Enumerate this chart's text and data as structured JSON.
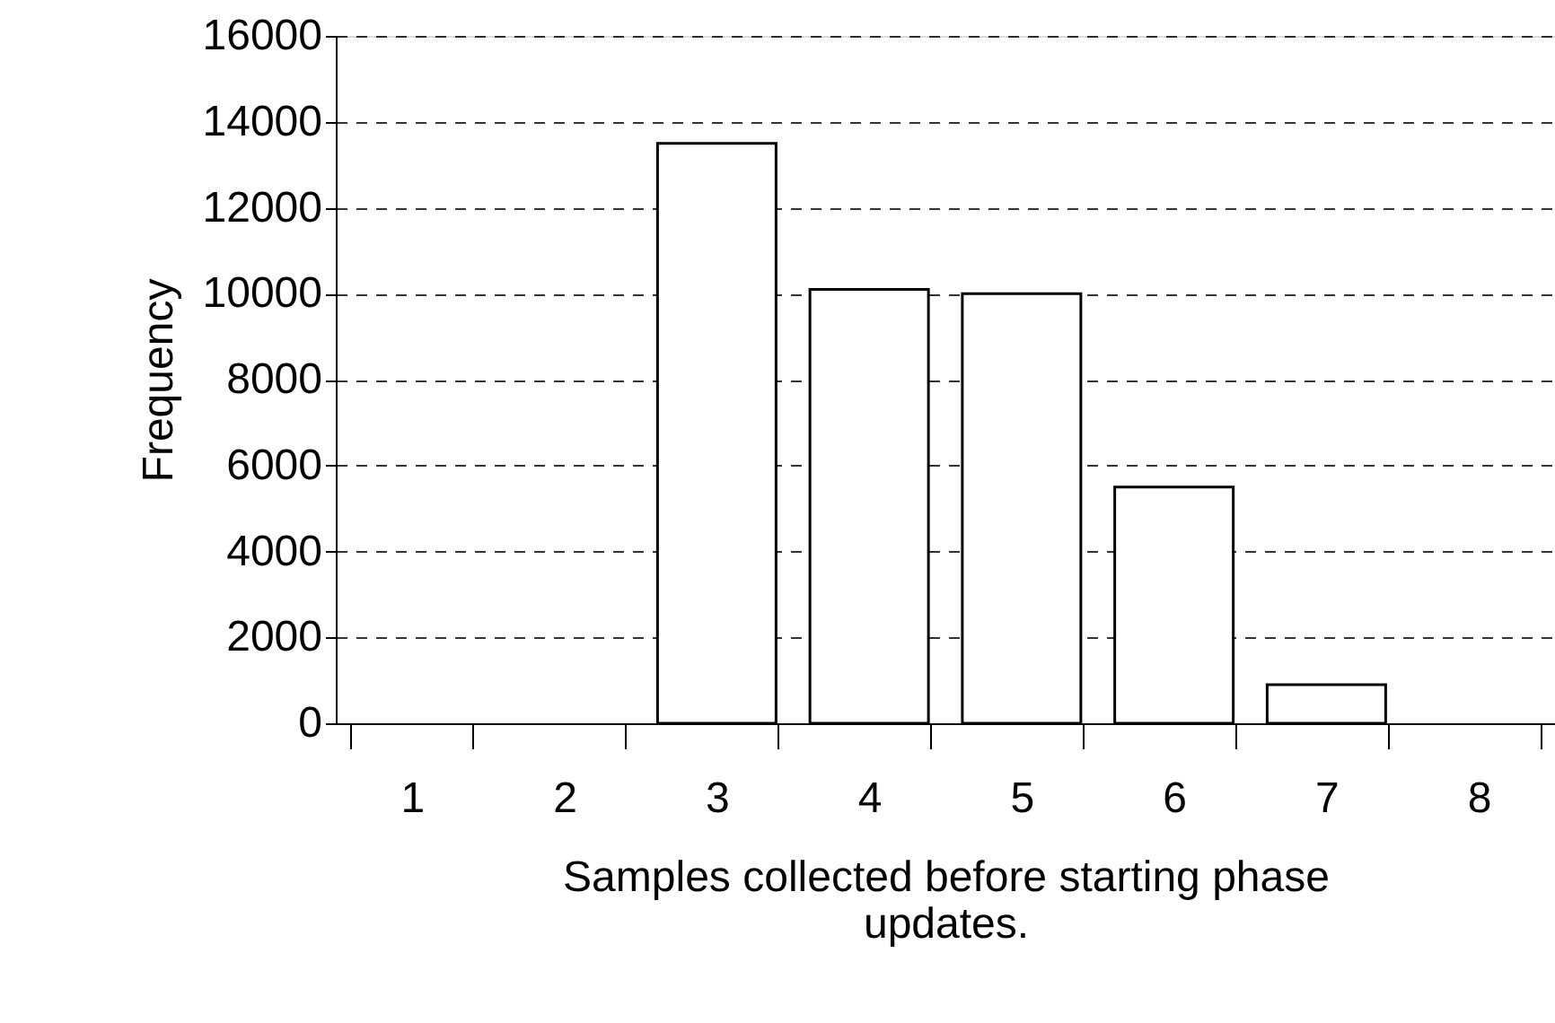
{
  "chart_data": {
    "type": "bar",
    "xlabel": "Samples collected before starting phase updates.",
    "ylabel": "Frequency",
    "categories": [
      "1",
      "2",
      "3",
      "4",
      "5",
      "6",
      "7",
      "8"
    ],
    "values": [
      0,
      0,
      13500,
      10100,
      10000,
      5500,
      900,
      0
    ],
    "color": "#ffffff",
    "ylim": [
      0,
      16000
    ],
    "yticks": [
      0,
      2000,
      4000,
      6000,
      8000,
      10000,
      12000,
      14000,
      16000
    ],
    "grid": "y"
  }
}
